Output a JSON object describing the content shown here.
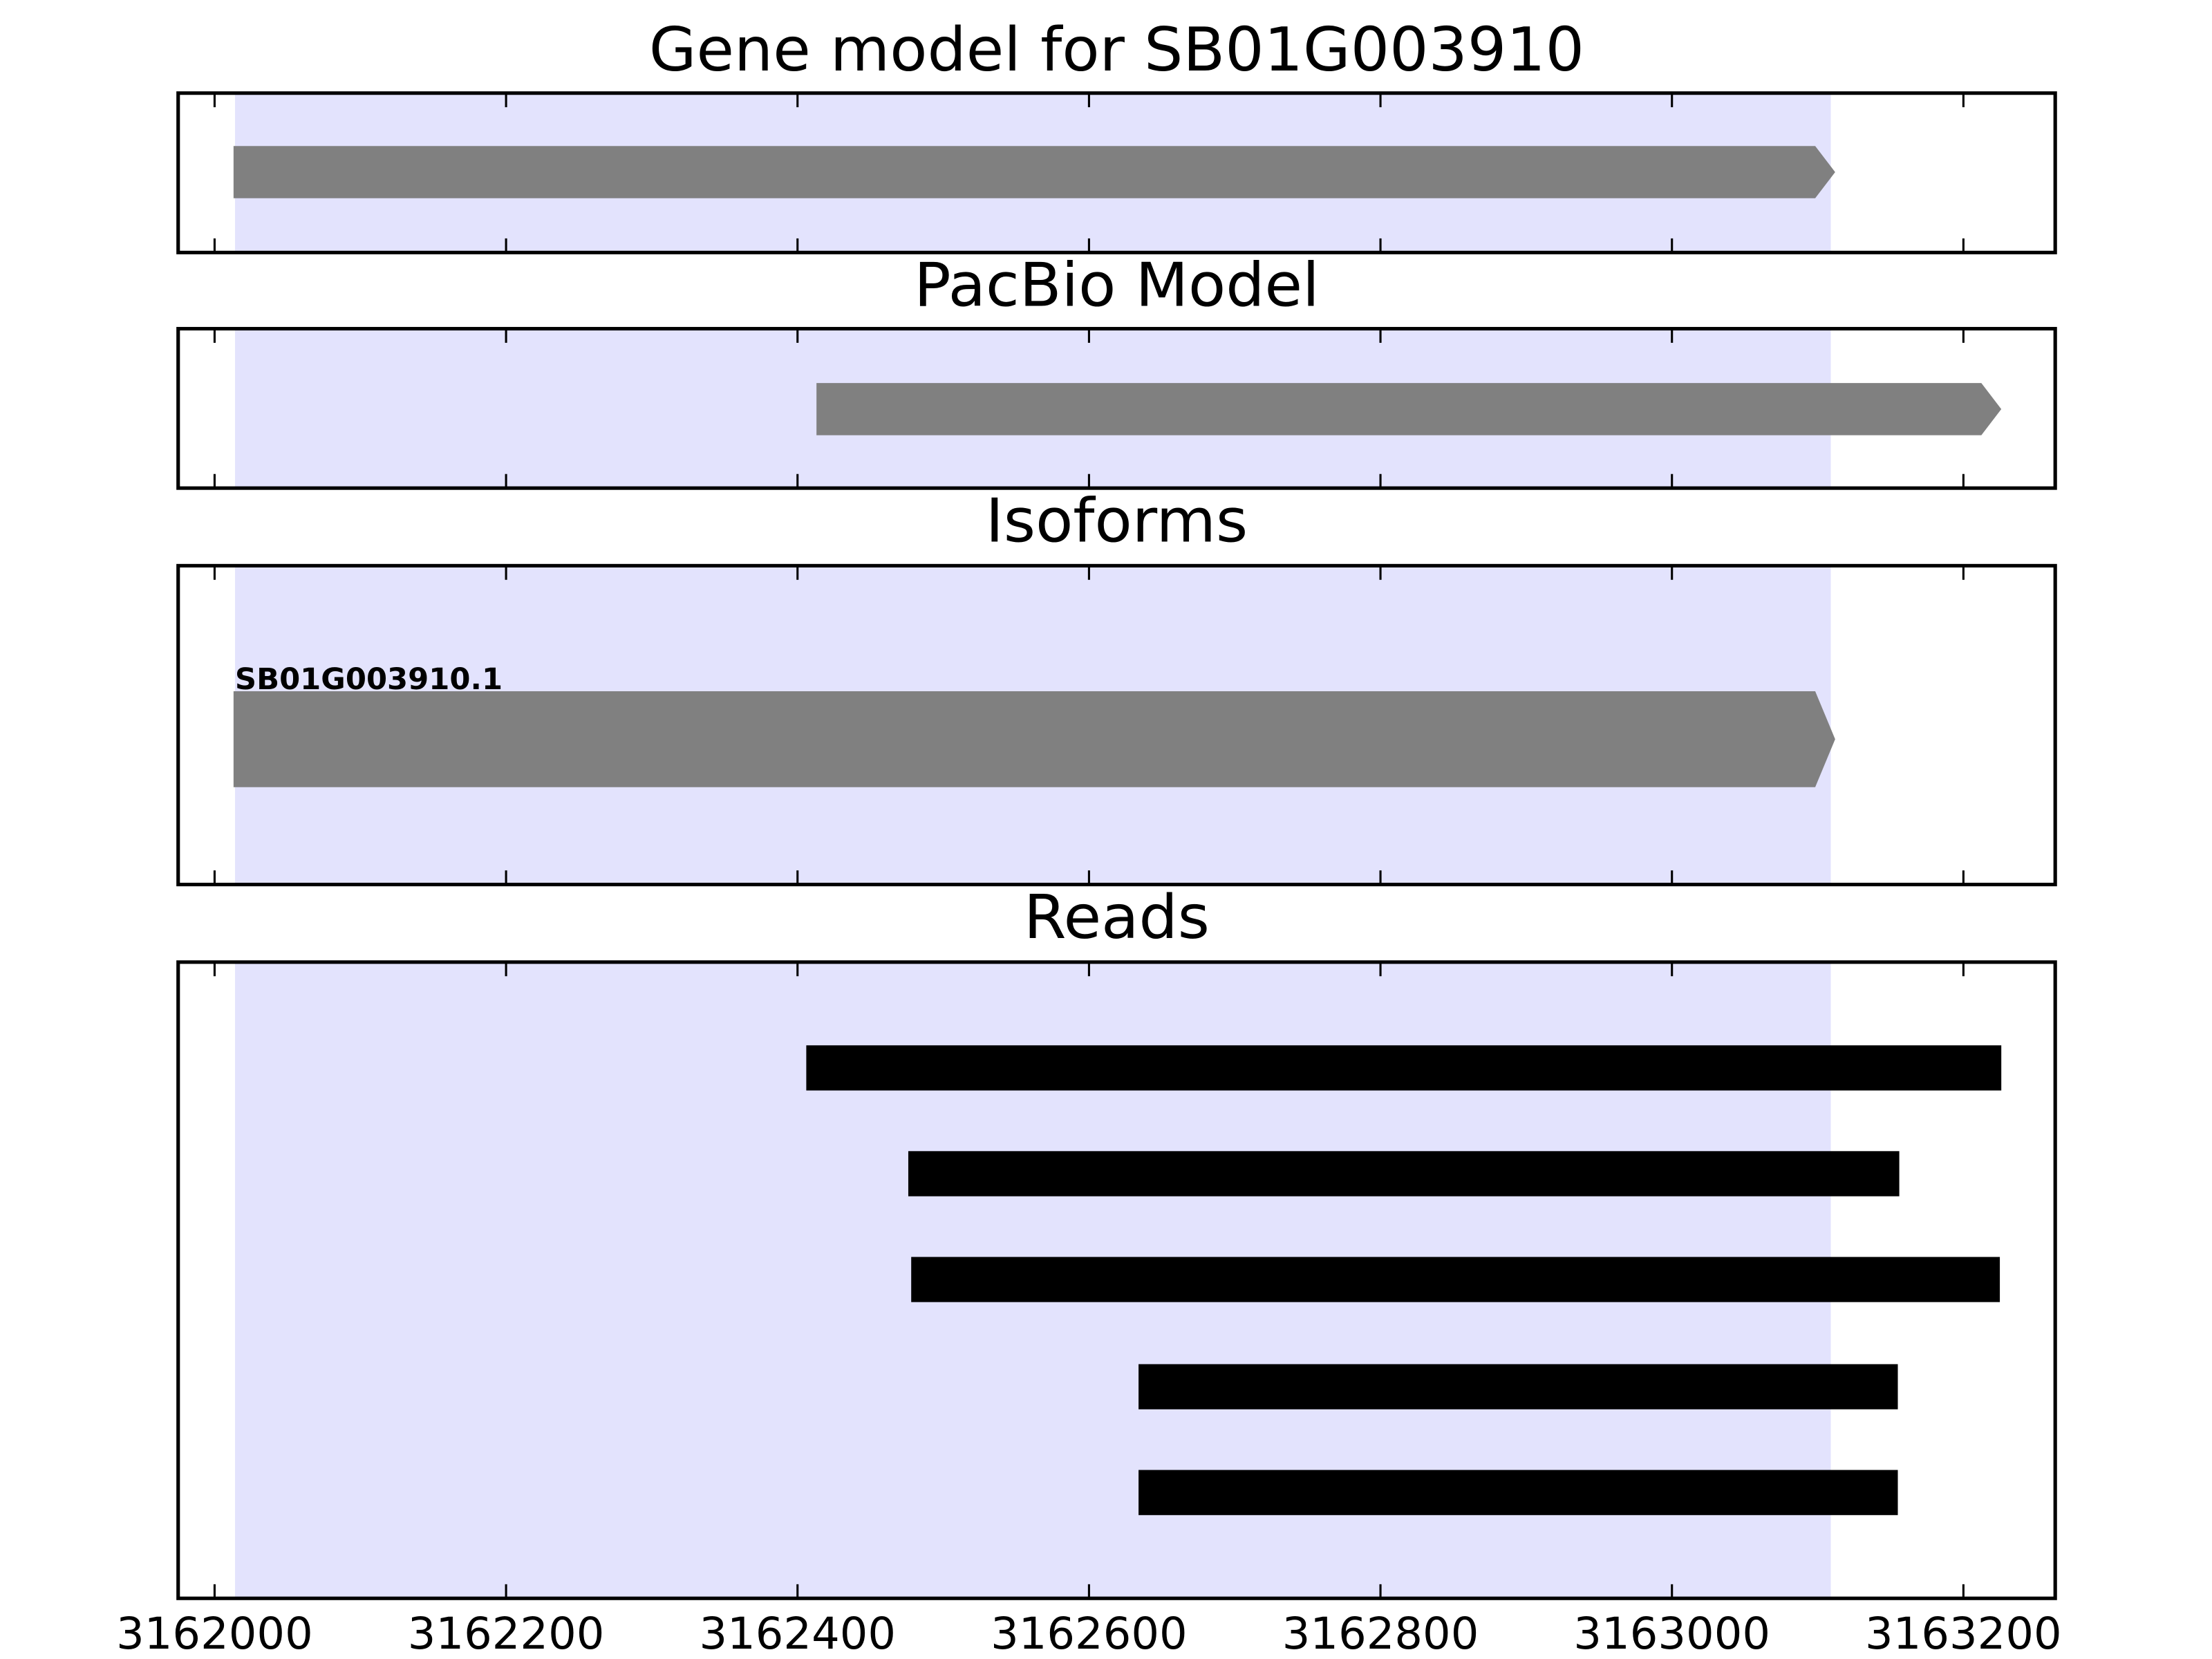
{
  "chart_data": [
    {
      "type": "track",
      "title": "Gene model for SB01G003910",
      "xlim": [
        3161975,
        3163263
      ],
      "xticks": [
        3162000,
        3162200,
        3162400,
        3162600,
        3162800,
        3163000,
        3163200
      ],
      "highlight": [
        3162014,
        3163109
      ],
      "highlight_color": "#e3e3fd",
      "color": "#808080",
      "marker": "arrow",
      "features": [
        {
          "start": 3162013,
          "end": 3163112
        }
      ]
    },
    {
      "type": "track",
      "title": "PacBio Model",
      "xlim": [
        3161975,
        3163263
      ],
      "xticks": [
        3162000,
        3162200,
        3162400,
        3162600,
        3162800,
        3163000,
        3163200
      ],
      "highlight": [
        3162014,
        3163109
      ],
      "highlight_color": "#e3e3fd",
      "color": "#808080",
      "marker": "arrow",
      "features": [
        {
          "start": 3162413,
          "end": 3163226
        }
      ]
    },
    {
      "type": "track",
      "title": "Isoforms",
      "xlim": [
        3161975,
        3163263
      ],
      "xticks": [
        3162000,
        3162200,
        3162400,
        3162600,
        3162800,
        3163000,
        3163200
      ],
      "highlight": [
        3162014,
        3163109
      ],
      "highlight_color": "#e3e3fd",
      "color": "#808080",
      "marker": "arrow",
      "features": [
        {
          "label": "SB01G003910.1",
          "start": 3162013,
          "end": 3163112
        }
      ]
    },
    {
      "type": "track",
      "title": "Reads",
      "xlim": [
        3161975,
        3163263
      ],
      "xticks": [
        3162000,
        3162200,
        3162400,
        3162600,
        3162800,
        3163000,
        3163200
      ],
      "highlight": [
        3162014,
        3163109
      ],
      "highlight_color": "#e3e3fd",
      "color": "#000000",
      "marker": "box",
      "tick_labels": true,
      "features": [
        {
          "start": 3162406,
          "end": 3163226
        },
        {
          "start": 3162476,
          "end": 3163156
        },
        {
          "start": 3162478,
          "end": 3163225
        },
        {
          "start": 3162634,
          "end": 3163155
        },
        {
          "start": 3162634,
          "end": 3163155
        }
      ]
    }
  ]
}
